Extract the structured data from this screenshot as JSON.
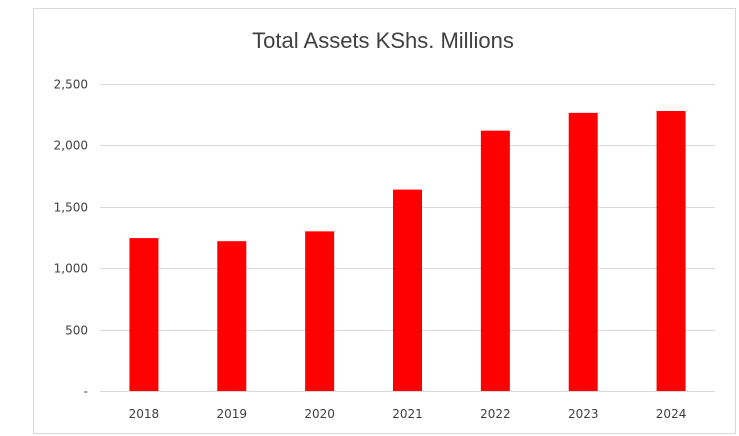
{
  "chart_data": {
    "type": "bar",
    "title": "Total Assets KShs. Millions",
    "xlabel": "",
    "ylabel": "",
    "categories": [
      "2018",
      "2019",
      "2020",
      "2021",
      "2022",
      "2023",
      "2024"
    ],
    "values": [
      1245,
      1220,
      1300,
      1640,
      2120,
      2265,
      2280
    ],
    "ylim": [
      0,
      2500
    ],
    "yticks": [
      0,
      500,
      1000,
      1500,
      2000,
      2500
    ],
    "ytick_labels": [
      "-",
      "500",
      "1,000",
      "1,500",
      "2,000",
      "2,500"
    ],
    "grid": true,
    "legend": "none",
    "bar_color": "#ff0000",
    "grid_color": "#d9d9d9"
  }
}
